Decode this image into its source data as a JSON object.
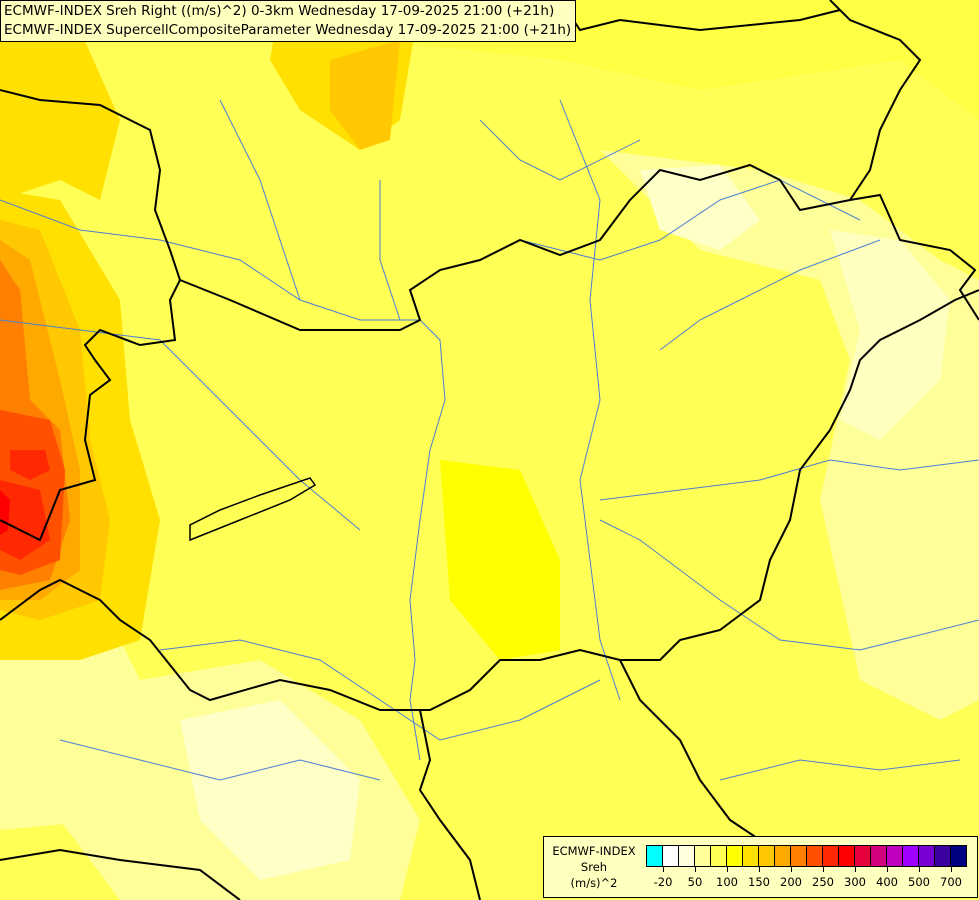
{
  "titles": [
    "ECMWF-INDEX Sreh Right ((m/s)^2) 0-3km Wednesday 17-09-2025 21:00 (+21h)",
    "ECMWF-INDEX SupercellCompositeParameter Wednesday 17-09-2025 21:00 (+21h)"
  ],
  "legend": {
    "line1": "ECMWF-INDEX",
    "line2": "Sreh",
    "line3": "(m/s)^2",
    "colors": [
      "#00ffff",
      "#ffffff",
      "#ffffe0",
      "#ffff99",
      "#ffff55",
      "#ffff00",
      "#ffe000",
      "#ffc800",
      "#ffa800",
      "#ff8000",
      "#ff5000",
      "#ff2800",
      "#ff0000",
      "#e6003c",
      "#d2007d",
      "#be00be",
      "#a000ff",
      "#7800d2",
      "#3c00a0",
      "#000080"
    ],
    "labels": [
      "-20",
      "50",
      "100",
      "150",
      "200",
      "250",
      "300",
      "400",
      "500",
      "700"
    ]
  },
  "map_colors": {
    "border": "#000000",
    "river": "#4a7fd6"
  }
}
